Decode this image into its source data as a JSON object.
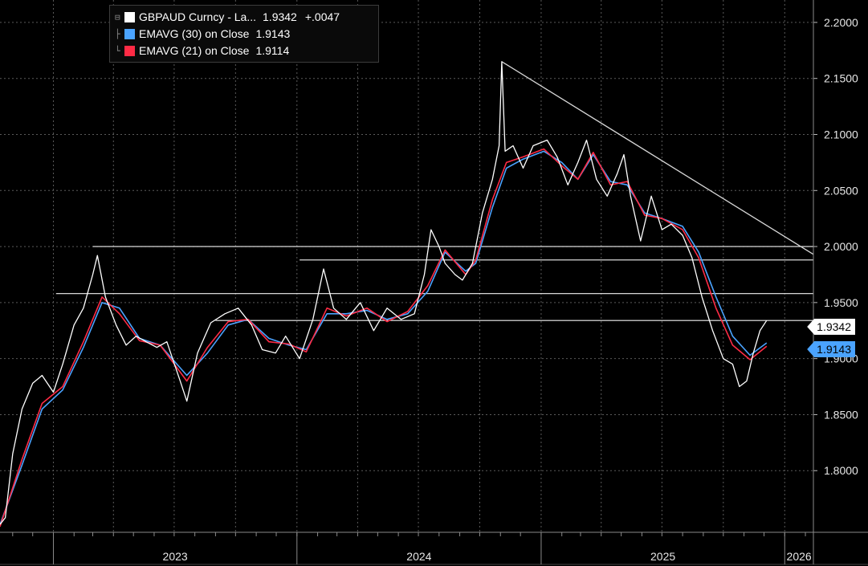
{
  "legend": {
    "series_name": "GBPAUD Curncy - La...",
    "series_last": "1.9342",
    "series_change": "+.0047",
    "ema30_name": "EMAVG (30)  on Close",
    "ema30_value": "1.9143",
    "ema21_name": "EMAVG (21)  on Close",
    "ema21_value": "1.9114"
  },
  "tags": {
    "last": "1.9342",
    "ema30": "1.9143"
  },
  "colors": {
    "price": "#ffffff",
    "ema30": "#4aa3ff",
    "ema21": "#ff2b45",
    "tag_blue": "#4aa3ff"
  },
  "chart_data": {
    "type": "line",
    "title": "",
    "xlabel": "",
    "ylabel": "",
    "x_range": [
      "2022-10-13",
      "2026-02-13"
    ],
    "ylim": [
      1.745,
      2.22
    ],
    "y_ticks": [
      "1.8000",
      "1.8500",
      "1.9000",
      "1.9500",
      "2.0000",
      "2.0500",
      "2.1000",
      "2.1500",
      "2.2000"
    ],
    "x_tick_labels": [
      "2023",
      "2024",
      "2025",
      "2026"
    ],
    "grid": true,
    "legend_position": "top-left",
    "series": [
      {
        "name": "GBPAUD Curncy - La...",
        "points": [
          [
            "2022-10-13",
            1.752
          ],
          [
            "2022-10-21",
            1.758
          ],
          [
            "2022-11-01",
            1.815
          ],
          [
            "2022-11-15",
            1.855
          ],
          [
            "2022-12-01",
            1.878
          ],
          [
            "2022-12-15",
            1.885
          ],
          [
            "2023-01-01",
            1.87
          ],
          [
            "2023-01-15",
            1.895
          ],
          [
            "2023-02-01",
            1.93
          ],
          [
            "2023-02-15",
            1.945
          ],
          [
            "2023-03-01",
            1.975
          ],
          [
            "2023-03-08",
            1.992
          ],
          [
            "2023-03-20",
            1.955
          ],
          [
            "2023-04-05",
            1.93
          ],
          [
            "2023-04-20",
            1.912
          ],
          [
            "2023-05-05",
            1.92
          ],
          [
            "2023-05-20",
            1.915
          ],
          [
            "2023-06-05",
            1.91
          ],
          [
            "2023-06-20",
            1.915
          ],
          [
            "2023-07-10",
            1.88
          ],
          [
            "2023-07-20",
            1.862
          ],
          [
            "2023-08-05",
            1.905
          ],
          [
            "2023-08-25",
            1.932
          ],
          [
            "2023-09-15",
            1.94
          ],
          [
            "2023-10-05",
            1.945
          ],
          [
            "2023-10-25",
            1.93
          ],
          [
            "2023-11-10",
            1.908
          ],
          [
            "2023-11-30",
            1.905
          ],
          [
            "2023-12-15",
            1.92
          ],
          [
            "2024-01-05",
            1.9
          ],
          [
            "2024-01-25",
            1.935
          ],
          [
            "2024-02-10",
            1.98
          ],
          [
            "2024-02-25",
            1.945
          ],
          [
            "2024-03-15",
            1.935
          ],
          [
            "2024-04-05",
            1.95
          ],
          [
            "2024-04-25",
            1.925
          ],
          [
            "2024-05-15",
            1.945
          ],
          [
            "2024-06-05",
            1.935
          ],
          [
            "2024-06-25",
            1.94
          ],
          [
            "2024-07-10",
            1.975
          ],
          [
            "2024-07-20",
            2.015
          ],
          [
            "2024-08-01",
            2.0
          ],
          [
            "2024-08-10",
            1.985
          ],
          [
            "2024-08-25",
            1.975
          ],
          [
            "2024-09-05",
            1.97
          ],
          [
            "2024-09-20",
            1.985
          ],
          [
            "2024-10-05",
            2.03
          ],
          [
            "2024-10-20",
            2.06
          ],
          [
            "2024-10-30",
            2.09
          ],
          [
            "2024-11-03",
            2.165
          ],
          [
            "2024-11-08",
            2.085
          ],
          [
            "2024-11-20",
            2.09
          ],
          [
            "2024-12-05",
            2.07
          ],
          [
            "2024-12-20",
            2.09
          ],
          [
            "2025-01-10",
            2.095
          ],
          [
            "2025-01-25",
            2.08
          ],
          [
            "2025-02-10",
            2.055
          ],
          [
            "2025-02-25",
            2.075
          ],
          [
            "2025-03-10",
            2.095
          ],
          [
            "2025-03-25",
            2.06
          ],
          [
            "2025-04-10",
            2.045
          ],
          [
            "2025-04-25",
            2.065
          ],
          [
            "2025-05-05",
            2.082
          ],
          [
            "2025-05-15",
            2.045
          ],
          [
            "2025-05-30",
            2.005
          ],
          [
            "2025-06-15",
            2.045
          ],
          [
            "2025-07-01",
            2.015
          ],
          [
            "2025-07-15",
            2.02
          ],
          [
            "2025-08-01",
            2.01
          ],
          [
            "2025-08-15",
            1.99
          ],
          [
            "2025-08-30",
            1.955
          ],
          [
            "2025-09-15",
            1.925
          ],
          [
            "2025-10-01",
            1.9
          ],
          [
            "2025-10-15",
            1.895
          ],
          [
            "2025-10-25",
            1.875
          ],
          [
            "2025-11-05",
            1.88
          ],
          [
            "2025-11-15",
            1.905
          ],
          [
            "2025-11-25",
            1.925
          ],
          [
            "2025-12-05",
            1.934
          ]
        ]
      },
      {
        "name": "EMAVG (30)  on Close",
        "points": [
          [
            "2022-10-13",
            1.752
          ],
          [
            "2022-11-15",
            1.805
          ],
          [
            "2022-12-15",
            1.855
          ],
          [
            "2023-01-15",
            1.872
          ],
          [
            "2023-02-15",
            1.91
          ],
          [
            "2023-03-15",
            1.95
          ],
          [
            "2023-04-10",
            1.945
          ],
          [
            "2023-05-10",
            1.918
          ],
          [
            "2023-06-10",
            1.912
          ],
          [
            "2023-07-20",
            1.885
          ],
          [
            "2023-08-20",
            1.905
          ],
          [
            "2023-09-20",
            1.93
          ],
          [
            "2023-10-20",
            1.935
          ],
          [
            "2023-11-20",
            1.918
          ],
          [
            "2023-12-20",
            1.912
          ],
          [
            "2024-01-15",
            1.908
          ],
          [
            "2024-02-15",
            1.94
          ],
          [
            "2024-03-15",
            1.94
          ],
          [
            "2024-04-15",
            1.943
          ],
          [
            "2024-05-15",
            1.935
          ],
          [
            "2024-06-15",
            1.94
          ],
          [
            "2024-07-15",
            1.96
          ],
          [
            "2024-08-10",
            1.995
          ],
          [
            "2024-09-10",
            1.978
          ],
          [
            "2024-09-25",
            1.985
          ],
          [
            "2024-10-20",
            2.035
          ],
          [
            "2024-11-10",
            2.07
          ],
          [
            "2024-12-05",
            2.078
          ],
          [
            "2025-01-05",
            2.085
          ],
          [
            "2025-02-01",
            2.075
          ],
          [
            "2025-02-25",
            2.06
          ],
          [
            "2025-03-20",
            2.082
          ],
          [
            "2025-04-15",
            2.058
          ],
          [
            "2025-05-10",
            2.055
          ],
          [
            "2025-06-05",
            2.03
          ],
          [
            "2025-07-01",
            2.025
          ],
          [
            "2025-08-01",
            2.018
          ],
          [
            "2025-08-25",
            1.995
          ],
          [
            "2025-09-20",
            1.955
          ],
          [
            "2025-10-15",
            1.92
          ],
          [
            "2025-11-10",
            1.903
          ],
          [
            "2025-12-05",
            1.914
          ]
        ]
      },
      {
        "name": "EMAVG (21)  on Close",
        "points": [
          [
            "2022-10-13",
            1.75
          ],
          [
            "2022-11-15",
            1.81
          ],
          [
            "2022-12-15",
            1.86
          ],
          [
            "2023-01-15",
            1.875
          ],
          [
            "2023-02-15",
            1.915
          ],
          [
            "2023-03-15",
            1.955
          ],
          [
            "2023-04-10",
            1.94
          ],
          [
            "2023-05-10",
            1.916
          ],
          [
            "2023-06-10",
            1.912
          ],
          [
            "2023-07-20",
            1.88
          ],
          [
            "2023-08-20",
            1.91
          ],
          [
            "2023-09-20",
            1.933
          ],
          [
            "2023-10-20",
            1.935
          ],
          [
            "2023-11-20",
            1.915
          ],
          [
            "2023-12-20",
            1.913
          ],
          [
            "2024-01-15",
            1.906
          ],
          [
            "2024-02-15",
            1.945
          ],
          [
            "2024-03-15",
            1.938
          ],
          [
            "2024-04-15",
            1.945
          ],
          [
            "2024-05-15",
            1.933
          ],
          [
            "2024-06-15",
            1.942
          ],
          [
            "2024-07-15",
            1.965
          ],
          [
            "2024-08-10",
            1.997
          ],
          [
            "2024-09-10",
            1.975
          ],
          [
            "2024-09-25",
            1.988
          ],
          [
            "2024-10-20",
            2.042
          ],
          [
            "2024-11-10",
            2.075
          ],
          [
            "2024-12-05",
            2.08
          ],
          [
            "2025-01-05",
            2.087
          ],
          [
            "2025-02-01",
            2.072
          ],
          [
            "2025-02-25",
            2.06
          ],
          [
            "2025-03-20",
            2.084
          ],
          [
            "2025-04-15",
            2.055
          ],
          [
            "2025-05-10",
            2.058
          ],
          [
            "2025-06-05",
            2.028
          ],
          [
            "2025-07-01",
            2.025
          ],
          [
            "2025-08-01",
            2.015
          ],
          [
            "2025-08-25",
            1.99
          ],
          [
            "2025-09-20",
            1.945
          ],
          [
            "2025-10-15",
            1.912
          ],
          [
            "2025-11-10",
            1.899
          ],
          [
            "2025-12-05",
            1.911
          ]
        ]
      }
    ],
    "annotations": {
      "trendline": [
        [
          "2024-11-03",
          2.165
        ],
        [
          "2026-02-13",
          1.993
        ]
      ],
      "horizontal_lines": [
        {
          "y": 2.0,
          "from": "2023-03-01",
          "to": "2026-02-13"
        },
        {
          "y": 1.988,
          "from": "2024-01-05",
          "to": "2026-02-13"
        },
        {
          "y": 1.958,
          "from": "2023-01-05",
          "to": "2026-02-13"
        },
        {
          "y": 1.934,
          "from": "2023-09-01",
          "to": "2026-02-13"
        }
      ]
    }
  }
}
